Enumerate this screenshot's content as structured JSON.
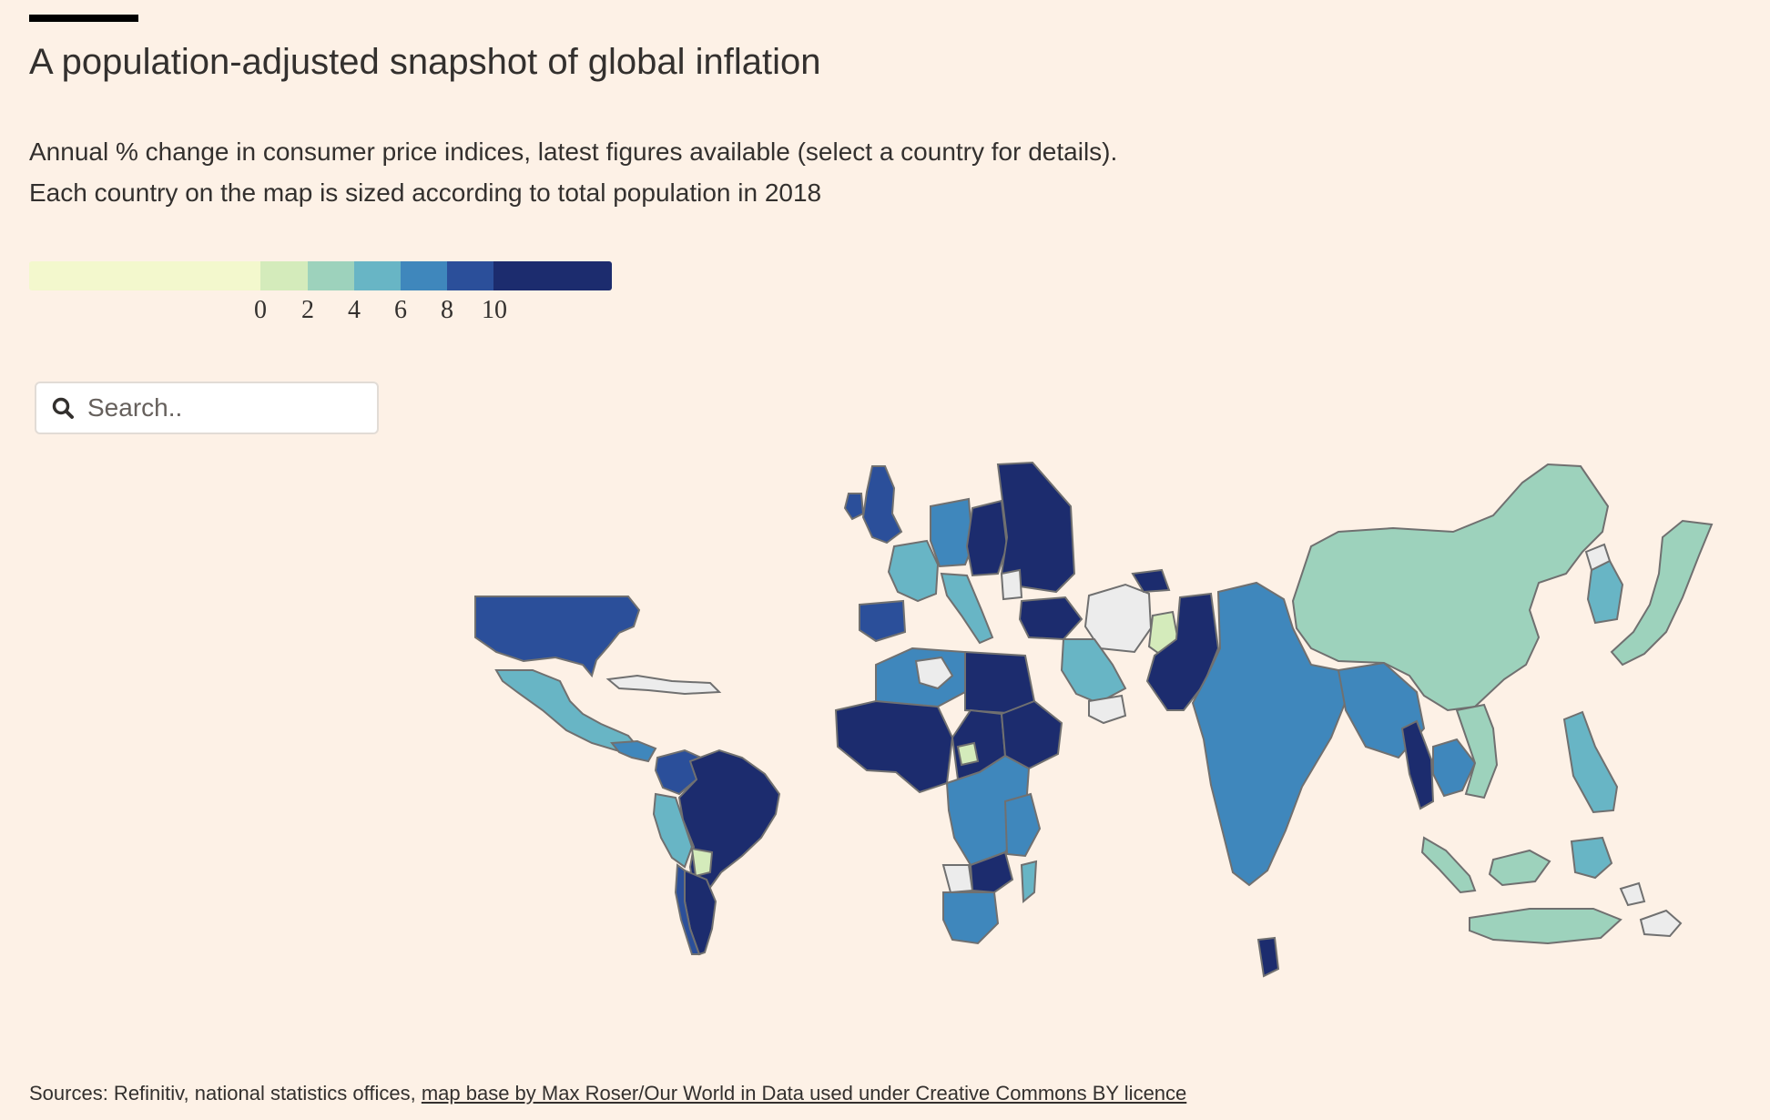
{
  "header": {
    "title": "A population-adjusted snapshot of global inflation",
    "subtitle_line1": "Annual % change in consumer price indices, latest figures available (select a country for details).",
    "subtitle_line2": "Each country on the map is sized according to total population in 2018"
  },
  "legend": {
    "swatches": [
      "#f3f8cd",
      "#d4ebbb",
      "#9dd2bc",
      "#68b5c5",
      "#3f87bc",
      "#2b4f9a",
      "#1c2c6e"
    ],
    "ticks": [
      "0",
      "2",
      "4",
      "6",
      "8",
      "10"
    ],
    "no_data_color": "#ececec"
  },
  "search": {
    "placeholder": "Search..",
    "value": ""
  },
  "footer": {
    "sources_text": "Sources: Refinitiv, national statistics offices, ",
    "link_text": "map base by Max Roser/Our World in Data used under Creative Commons BY licence"
  },
  "icons": {
    "search": "search-icon"
  }
}
